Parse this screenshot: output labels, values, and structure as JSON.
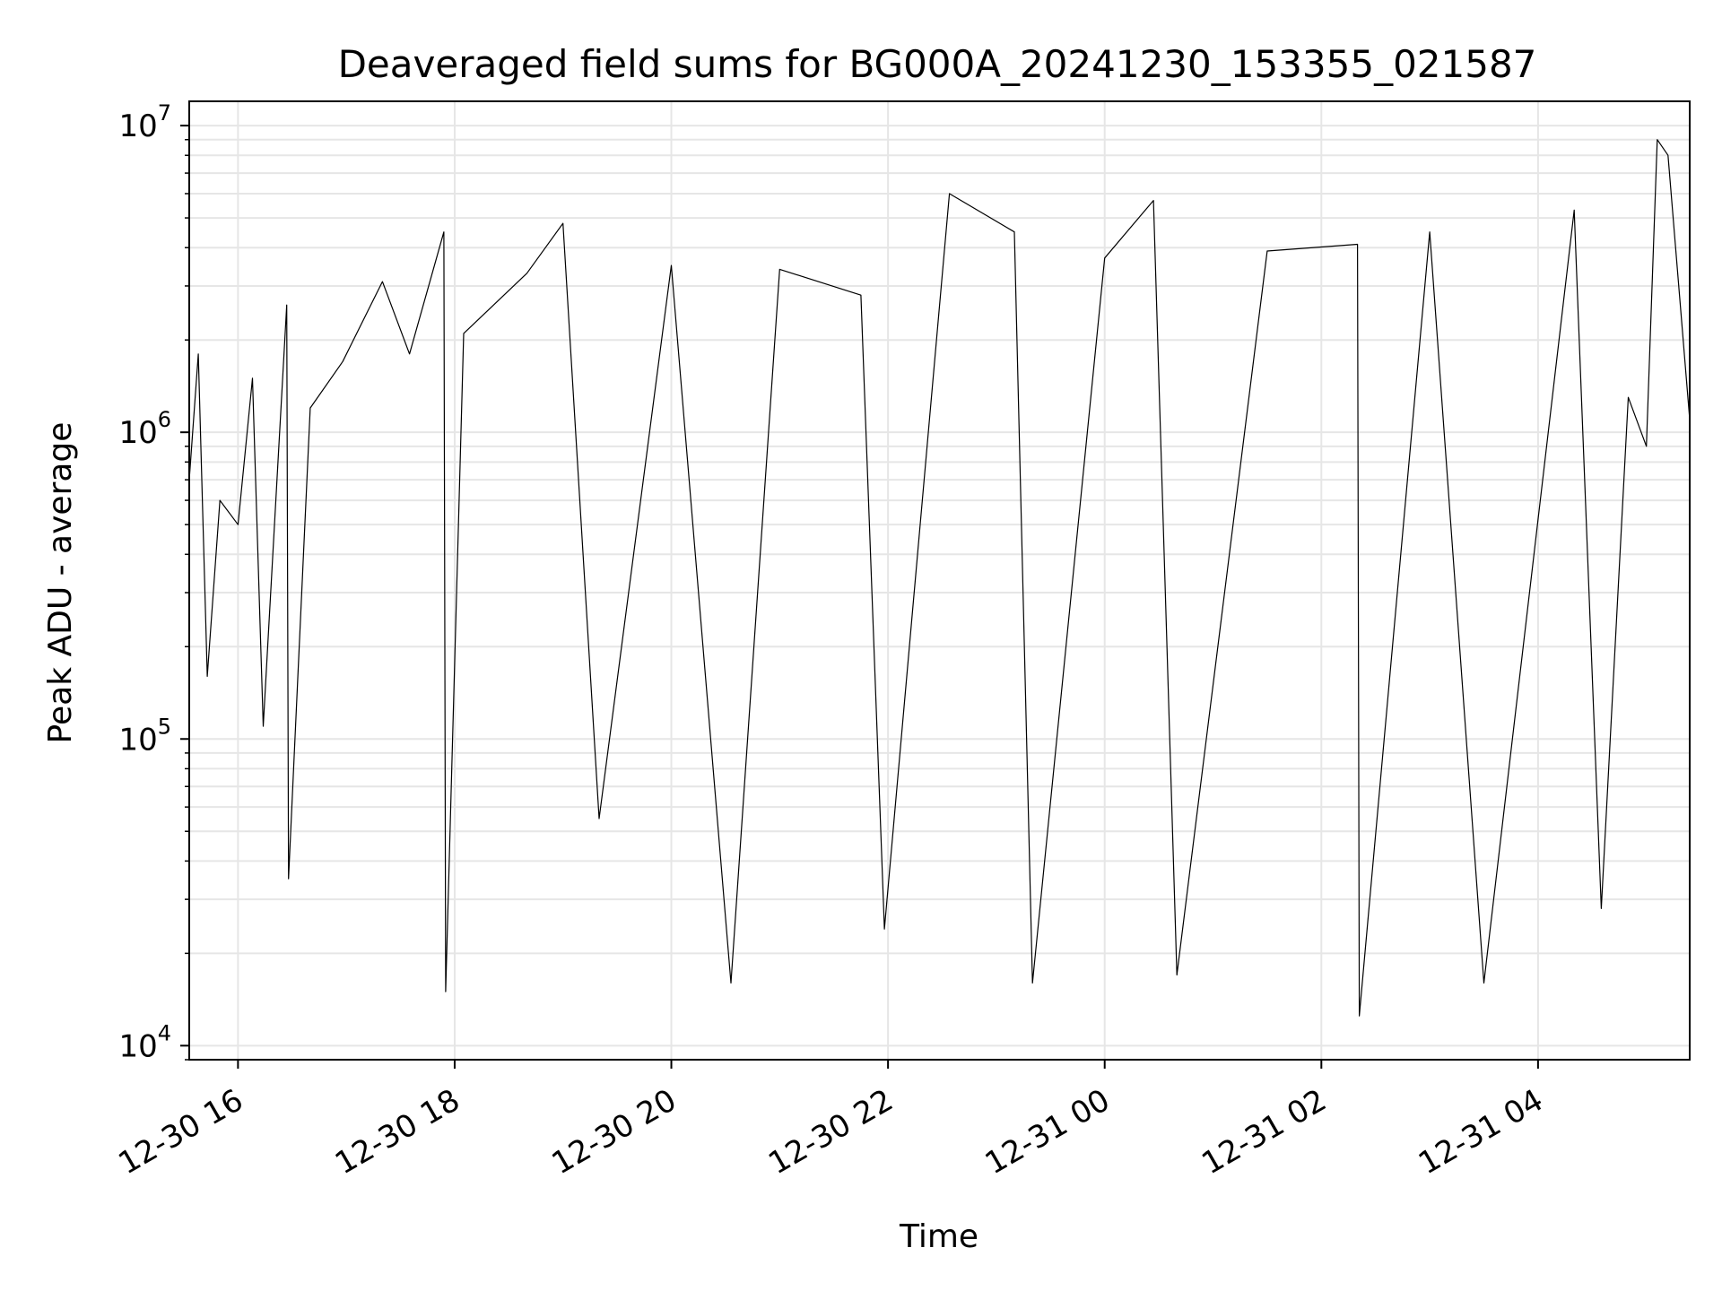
{
  "chart_data": {
    "type": "line",
    "title": "Deaveraged field sums for BG000A_20241230_153355_021587",
    "xlabel": "Time",
    "ylabel": "Peak ADU - average",
    "yscale": "log",
    "xlim": [
      "2024-12-30 15:33",
      "2024-12-31 05:24"
    ],
    "ylim": [
      9000,
      12000000
    ],
    "grid": true,
    "x_ticks": [
      {
        "t": "2024-12-30 16:00",
        "label": "12-30 16"
      },
      {
        "t": "2024-12-30 18:00",
        "label": "12-30 18"
      },
      {
        "t": "2024-12-30 20:00",
        "label": "12-30 20"
      },
      {
        "t": "2024-12-30 22:00",
        "label": "12-30 22"
      },
      {
        "t": "2024-12-31 00:00",
        "label": "12-31 00"
      },
      {
        "t": "2024-12-31 02:00",
        "label": "12-31 02"
      },
      {
        "t": "2024-12-31 04:00",
        "label": "12-31 04"
      }
    ],
    "y_ticks": [
      {
        "value": 10000,
        "base": "10",
        "exp": "4"
      },
      {
        "value": 100000,
        "base": "10",
        "exp": "5"
      },
      {
        "value": 1000000,
        "base": "10",
        "exp": "6"
      },
      {
        "value": 10000000,
        "base": "10",
        "exp": "7"
      }
    ],
    "series": [
      {
        "color": "#000000",
        "x": [
          "2024-12-30 15:33",
          "2024-12-30 15:38",
          "2024-12-30 15:43",
          "2024-12-30 15:50",
          "2024-12-30 16:00",
          "2024-12-30 16:08",
          "2024-12-30 16:14",
          "2024-12-30 16:27",
          "2024-12-30 16:28",
          "2024-12-30 16:40",
          "2024-12-30 16:58",
          "2024-12-30 17:20",
          "2024-12-30 17:35",
          "2024-12-30 17:54",
          "2024-12-30 17:55",
          "2024-12-30 18:05",
          "2024-12-30 18:40",
          "2024-12-30 19:00",
          "2024-12-30 19:20",
          "2024-12-30 20:00",
          "2024-12-30 20:33",
          "2024-12-30 21:00",
          "2024-12-30 21:45",
          "2024-12-30 21:58",
          "2024-12-30 22:34",
          "2024-12-30 23:10",
          "2024-12-30 23:20",
          "2024-12-31 00:00",
          "2024-12-31 00:27",
          "2024-12-31 00:40",
          "2024-12-31 01:30",
          "2024-12-31 02:20",
          "2024-12-31 02:21",
          "2024-12-31 03:00",
          "2024-12-31 03:30",
          "2024-12-31 04:20",
          "2024-12-31 04:35",
          "2024-12-31 04:50",
          "2024-12-31 05:00",
          "2024-12-31 05:06",
          "2024-12-31 05:12",
          "2024-12-31 05:24"
        ],
        "y": [
          700000,
          1800000,
          160000,
          600000,
          500000,
          1500000,
          110000,
          2600000,
          35000,
          1200000,
          1700000,
          3100000,
          1800000,
          4500000,
          15000,
          2100000,
          3300000,
          4800000,
          55000,
          3500000,
          16000,
          3400000,
          2800000,
          24000,
          6000000,
          4500000,
          16000,
          3700000,
          5700000,
          17000,
          3900000,
          4100000,
          12500,
          4500000,
          16000,
          5300000,
          28000,
          1300000,
          900000,
          9000000,
          8000000,
          1100000
        ]
      }
    ]
  }
}
